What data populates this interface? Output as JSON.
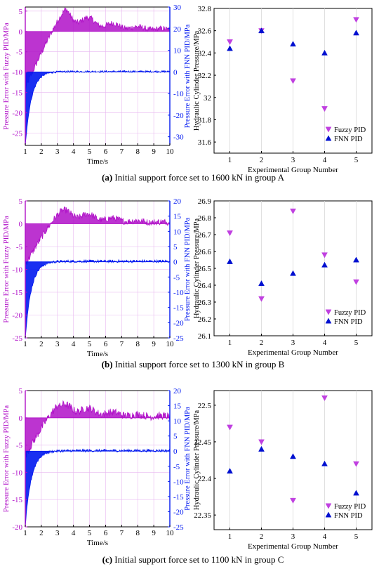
{
  "panels": [
    {
      "caption_letter": "(a)",
      "caption_text": "Initial support force set to 1600 kN in group A",
      "error_chart": {
        "type": "area",
        "xlabel": "Time/s",
        "ylabel_left": "Pressure Error with Fuzzy PID/MPa",
        "ylabel_right": "Pressure Error with FNN PID/MPa",
        "x_ticks": [
          1,
          2,
          3,
          4,
          5,
          6,
          7,
          8,
          9,
          10
        ],
        "xlim": [
          1,
          10
        ],
        "left_ticks": [
          5,
          0,
          -5,
          -10,
          -15,
          -20,
          -25
        ],
        "left_lim": [
          -28,
          6
        ],
        "right_ticks": [
          30,
          20,
          10,
          0,
          -10,
          -20,
          -30
        ],
        "right_lim": [
          -34,
          30
        ],
        "fuzzy_color": "#b010c8",
        "fnn_color": "#0018f0",
        "fuzzy_min": -14,
        "fnn_min": -34,
        "fnn_baseline": 0,
        "fuzzy_baseline": 0,
        "fuzzy_peak": 5.5,
        "fuzzy_peak_time": 3.6,
        "settle_time": 3.5
      },
      "scatter_chart": {
        "type": "scatter",
        "xlabel": "Experimental Group Number",
        "ylabel": "Hydraulic Cylinder Pressure/MPa",
        "x": [
          1,
          2,
          3,
          4,
          5
        ],
        "ylim": [
          31.5,
          32.8
        ],
        "y_ticks": [
          "31.6",
          "31.8",
          "32",
          "32.2",
          "32.4",
          "32.6",
          "32.8"
        ],
        "y_tick_values": [
          31.6,
          31.8,
          32.0,
          32.2,
          32.4,
          32.6,
          32.8
        ],
        "series": [
          {
            "name": "Fuzzy PID",
            "values": [
              32.5,
              32.6,
              32.15,
              31.9,
              32.7
            ],
            "color": "#c040e0",
            "marker": "down"
          },
          {
            "name": "FNN PID",
            "values": [
              32.44,
              32.6,
              32.48,
              32.4,
              32.58
            ],
            "color": "#0010d0",
            "marker": "up"
          }
        ],
        "legend": "bottom-right",
        "grid": "vertical"
      }
    },
    {
      "caption_letter": "(b)",
      "caption_text": "Initial support force set to 1300 kN in group B",
      "error_chart": {
        "type": "area",
        "xlabel": "Time/s",
        "ylabel_left": "Pressure Error with Fuzzy PID/MPa",
        "ylabel_right": "Pressure Error with FNN PID/MPa",
        "x_ticks": [
          1,
          2,
          3,
          4,
          5,
          6,
          7,
          8,
          9,
          10
        ],
        "xlim": [
          1,
          10
        ],
        "left_ticks": [
          5,
          0,
          -5,
          -10,
          -15,
          -20,
          -25
        ],
        "left_lim": [
          -25,
          5
        ],
        "right_ticks": [
          20,
          15,
          10,
          5,
          0,
          -5,
          -10,
          -15,
          -20,
          -25
        ],
        "right_lim": [
          -25,
          20
        ],
        "fuzzy_color": "#b010c8",
        "fnn_color": "#0018f0",
        "fuzzy_min": -9,
        "fnn_min": -25,
        "fnn_baseline": 0,
        "fuzzy_baseline": 0,
        "fuzzy_peak": 3,
        "fuzzy_peak_time": 4,
        "settle_time": 3.3
      },
      "scatter_chart": {
        "type": "scatter",
        "xlabel": "Experimental Group Number",
        "ylabel": "Hydraulic Cylinder Pressure/MPa",
        "x": [
          1,
          2,
          3,
          4,
          5
        ],
        "ylim": [
          26.1,
          26.9
        ],
        "y_ticks": [
          "26.1",
          "26.2",
          "26.3",
          "26.4",
          "26.5",
          "26.6",
          "26.7",
          "26.8",
          "26.9"
        ],
        "y_tick_values": [
          26.1,
          26.2,
          26.3,
          26.4,
          26.5,
          26.6,
          26.7,
          26.8,
          26.9
        ],
        "series": [
          {
            "name": "Fuzzy PID",
            "values": [
              26.71,
              26.32,
              26.84,
              26.58,
              26.42
            ],
            "color": "#c040e0",
            "marker": "down"
          },
          {
            "name": "FNN PID",
            "values": [
              26.54,
              26.41,
              26.47,
              26.52,
              26.55
            ],
            "color": "#0010d0",
            "marker": "up"
          }
        ],
        "legend": "bottom-right",
        "grid": "vertical"
      }
    },
    {
      "caption_letter": "(c)",
      "caption_text": "Initial support force set to 1100 kN in group C",
      "error_chart": {
        "type": "area",
        "xlabel": "Time/s",
        "ylabel_left": "Pressure Error with Fuzzy PID/MPa",
        "ylabel_right": "Pressure Error with FNN PID/MPa",
        "x_ticks": [
          1,
          2,
          3,
          4,
          5,
          6,
          7,
          8,
          9,
          10
        ],
        "xlim": [
          1,
          10
        ],
        "left_ticks": [
          5,
          0,
          -5,
          -10,
          -15,
          -20
        ],
        "left_lim": [
          -20,
          5
        ],
        "right_ticks": [
          20,
          15,
          10,
          5,
          0,
          -5,
          -10,
          -15,
          -20,
          -25
        ],
        "right_lim": [
          -25,
          20
        ],
        "fuzzy_color": "#b010c8",
        "fnn_color": "#0018f0",
        "fuzzy_min": -7,
        "fnn_min": -25,
        "fnn_baseline": 0,
        "fuzzy_baseline": 0,
        "fuzzy_peak": 2.5,
        "fuzzy_peak_time": 4,
        "settle_time": 3.1
      },
      "scatter_chart": {
        "type": "scatter",
        "xlabel": "Experimental Group Number",
        "ylabel": "Hydraulic Cylinder Pressure/MPa",
        "x": [
          1,
          2,
          3,
          4,
          5
        ],
        "ylim": [
          22.33,
          22.52
        ],
        "y_ticks": [
          "22.35",
          "22.4",
          "22.45",
          "22.5"
        ],
        "y_tick_values": [
          22.35,
          22.4,
          22.45,
          22.5
        ],
        "series": [
          {
            "name": "Fuzzy PID",
            "values": [
              22.47,
              22.45,
              22.37,
              22.51,
              22.42
            ],
            "color": "#c040e0",
            "marker": "down"
          },
          {
            "name": "FNN PID",
            "values": [
              22.41,
              22.44,
              22.43,
              22.42,
              22.38
            ],
            "color": "#0010d0",
            "marker": "up"
          }
        ],
        "legend": "bottom-right",
        "grid": "vertical"
      }
    }
  ]
}
